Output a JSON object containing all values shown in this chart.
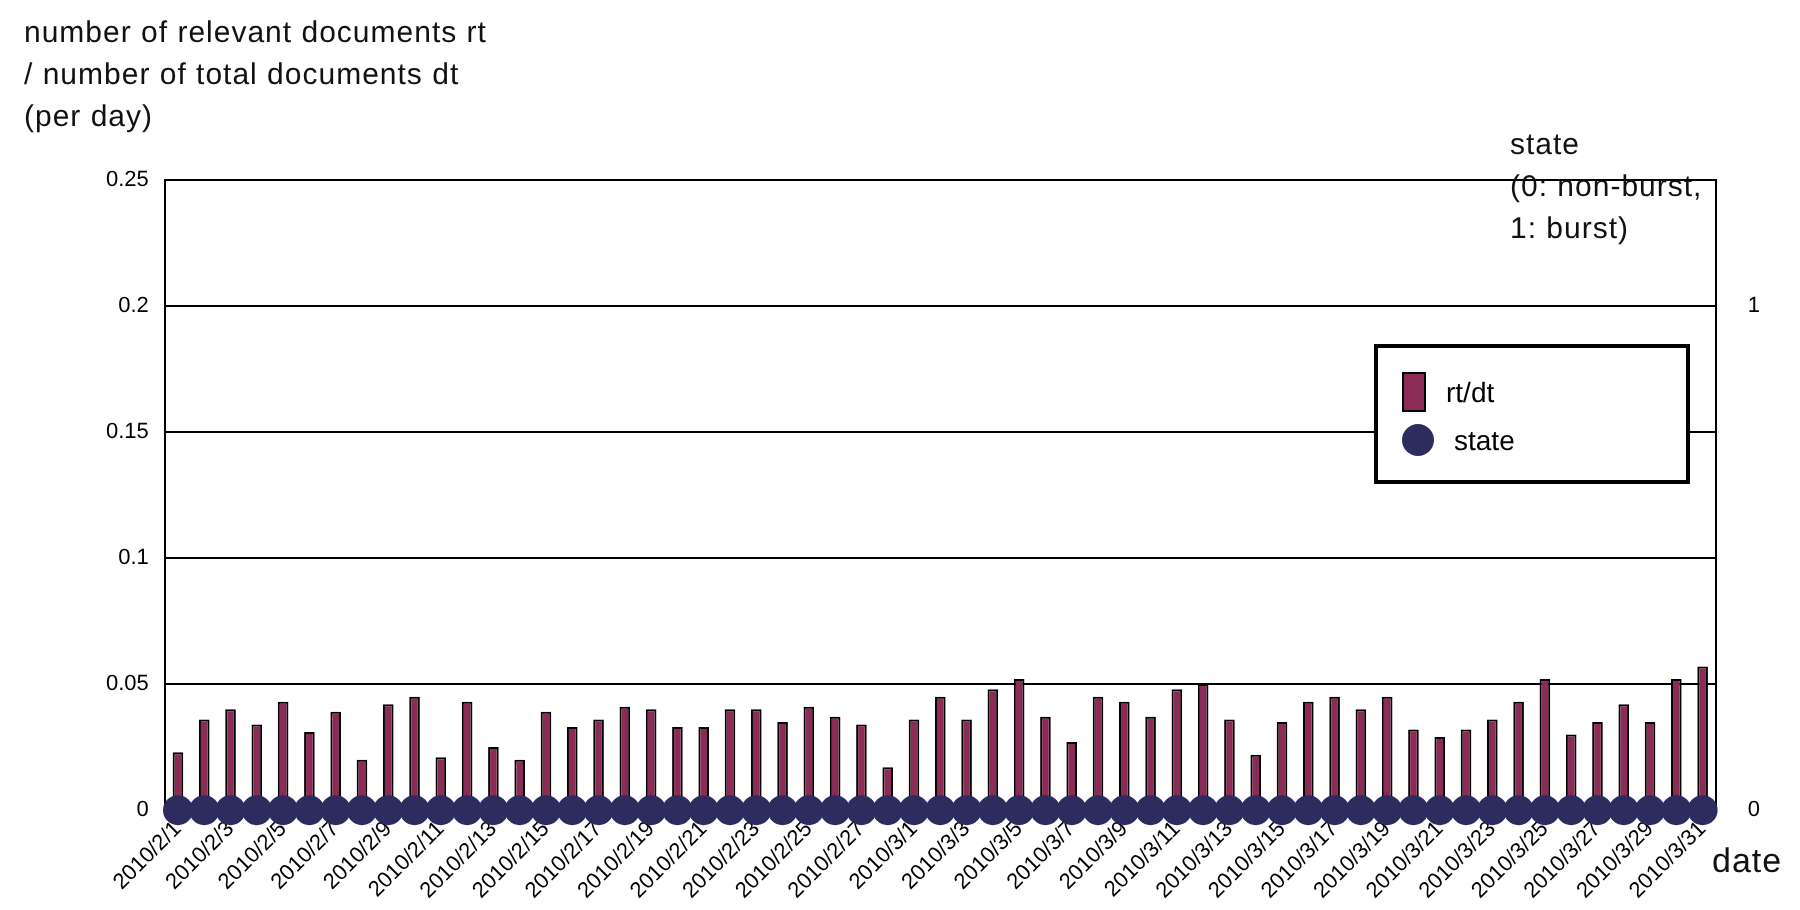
{
  "chart_data": {
    "type": "bar",
    "ylabel": "number of relevant documents rt\n/ number of total documents dt\n(per day)",
    "y2label": "state\n(0: non-burst,\n1: burst)",
    "xlabel": "date",
    "categories": [
      "2010/2/1",
      null,
      "2010/2/3",
      null,
      "2010/2/5",
      null,
      "2010/2/7",
      null,
      "2010/2/9",
      null,
      "2010/2/11",
      null,
      "2010/2/13",
      null,
      "2010/2/15",
      null,
      "2010/2/17",
      null,
      "2010/2/19",
      null,
      "2010/2/21",
      null,
      "2010/2/23",
      null,
      "2010/2/25",
      null,
      "2010/2/27",
      null,
      "2010/3/1",
      null,
      "2010/3/3",
      null,
      "2010/3/5",
      null,
      "2010/3/7",
      null,
      "2010/3/9",
      null,
      "2010/3/11",
      null,
      "2010/3/13",
      null,
      "2010/3/15",
      null,
      "2010/3/17",
      null,
      "2010/3/19",
      null,
      "2010/3/21",
      null,
      "2010/3/23",
      null,
      "2010/3/25",
      null,
      "2010/3/27",
      null,
      "2010/3/29",
      null,
      "2010/3/31"
    ],
    "series": [
      {
        "name": "rt/dt",
        "type": "bar",
        "color": "#8b2b57",
        "values": [
          0.023,
          0.036,
          0.04,
          0.034,
          0.043,
          0.031,
          0.039,
          0.02,
          0.042,
          0.045,
          0.021,
          0.043,
          0.025,
          0.02,
          0.039,
          0.033,
          0.036,
          0.041,
          0.04,
          0.033,
          0.033,
          0.04,
          0.04,
          0.035,
          0.041,
          0.037,
          0.034,
          0.017,
          0.036,
          0.045,
          0.036,
          0.048,
          0.052,
          0.037,
          0.027,
          0.045,
          0.043,
          0.037,
          0.048,
          0.05,
          0.036,
          0.022,
          0.035,
          0.043,
          0.045,
          0.04,
          0.045,
          0.032,
          0.029,
          0.032,
          0.036,
          0.043,
          0.052,
          0.03,
          0.035,
          0.042,
          0.035,
          0.052,
          0.057
        ]
      },
      {
        "name": "state",
        "type": "scatter",
        "axis": "y2",
        "marker": "circle",
        "color": "#2e2c5e",
        "values": [
          0,
          0,
          0,
          0,
          0,
          0,
          0,
          0,
          0,
          0,
          0,
          0,
          0,
          0,
          0,
          0,
          0,
          0,
          0,
          0,
          0,
          0,
          0,
          0,
          0,
          0,
          0,
          0,
          0,
          0,
          0,
          0,
          0,
          0,
          0,
          0,
          0,
          0,
          0,
          0,
          0,
          0,
          0,
          0,
          0,
          0,
          0,
          0,
          0,
          0,
          0,
          0,
          0,
          0,
          0,
          0,
          0,
          0,
          0
        ]
      }
    ],
    "ylim": [
      0,
      0.25
    ],
    "yticks": [
      0,
      0.05,
      0.1,
      0.15,
      0.2,
      0.25
    ],
    "y2lim": [
      0,
      1.25
    ],
    "y2ticks": [
      0,
      1
    ],
    "grid": "y",
    "legend": "right"
  }
}
